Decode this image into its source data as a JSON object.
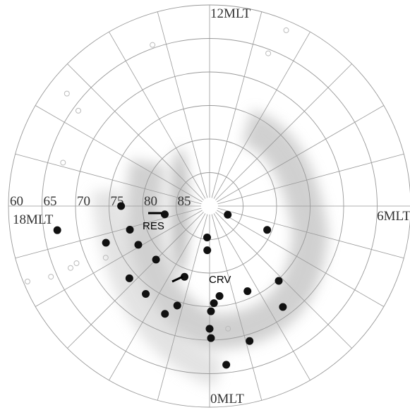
{
  "chart_data": {
    "type": "polar-scatter",
    "thetalim": [
      0,
      24
    ],
    "thetaticks": [
      {
        "value": 12,
        "label": "12MLT"
      },
      {
        "value": 6,
        "label": "6MLT"
      },
      {
        "value": 0,
        "label": "0MLT"
      },
      {
        "value": 18,
        "label": "18MLT"
      }
    ],
    "rlim": [
      60,
      90
    ],
    "rticks": [
      60,
      65,
      70,
      75,
      80,
      85
    ],
    "grid": true,
    "annotations": [
      "RES",
      "CRV"
    ],
    "series": [
      {
        "marker": "filled",
        "color": "#111111",
        "mlt": [
          18.0,
          18.7,
          4.3,
          18.6,
          4.5,
          19.1,
          23.7,
          19.3,
          19.9,
          23.8,
          21.0,
          22.7,
          20.8,
          2.85,
          21.6,
          1.6,
          0.42,
          0.17,
          22.8,
          2.4,
          22.5,
          0.05,
          0.0,
          0.04,
          1.1,
          0.4
        ],
        "lat": [
          76.8,
          83.2,
          87.0,
          67.0,
          80.7,
          77.6,
          85.3,
          73.6,
          77.9,
          83.4,
          78.7,
          78.8,
          73.9,
          74.8,
          73.8,
          76.1,
          76.5,
          75.5,
          74.4,
          71.4,
          72.6,
          74.3,
          71.7,
          70.3,
          69.0,
          66.2
        ]
      },
      {
        "marker": "open",
        "color": "#bbbbbb",
        "mlt": [
          10.43,
          13.3,
          10.6,
          15.45,
          15.6,
          16.9,
          19.6,
          19.55,
          19.5,
          19.6,
          0.57,
          19.76
        ],
        "lat": [
          61.4,
          64.5,
          65.6,
          62.9,
          65.8,
          67.2,
          67.3,
          68.4,
          60.6,
          64.1,
          71.5,
          72.7
        ]
      }
    ]
  }
}
